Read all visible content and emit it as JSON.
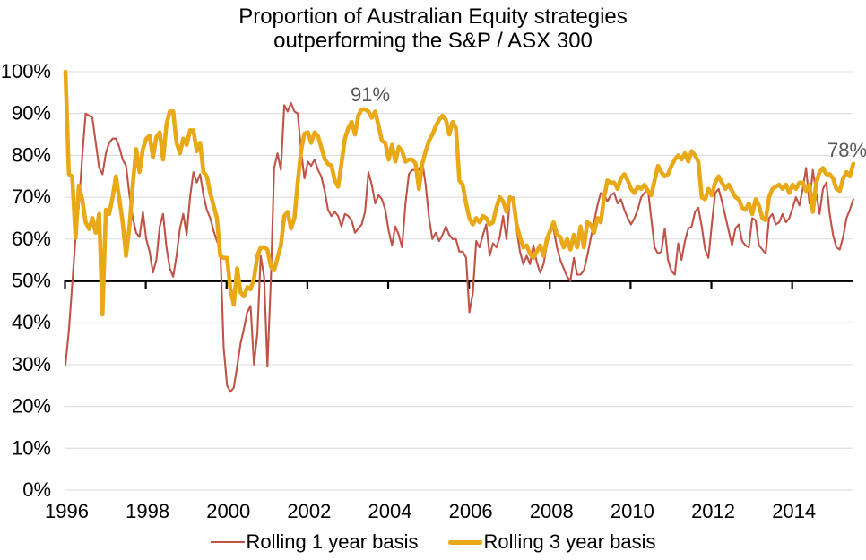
{
  "title": {
    "line1": "Proportion of Australian Equity strategies",
    "line2": "outperforming the S&P / ASX 300"
  },
  "legend": {
    "items": [
      {
        "label": "Rolling 1 year basis",
        "color": "#C05348",
        "thickness": 2.5
      },
      {
        "label": "Rolling 3 year basis",
        "color": "#E9A816",
        "thickness": 5
      }
    ]
  },
  "annotations": [
    {
      "text": "91%",
      "series": "Rolling 3 year basis",
      "month_index": 89,
      "value": 91
    },
    {
      "text": "78%",
      "series": "Rolling 3 year basis",
      "month_index": 234,
      "value": 78
    }
  ],
  "chart_data": {
    "type": "line",
    "title": "Proportion of Australian Equity strategies outperforming the S&P / ASX 300",
    "xlabel": "",
    "ylabel": "",
    "x_start_year": 1996,
    "x_step": "1 month",
    "x_tick_labels": [
      "1996",
      "1998",
      "2000",
      "2002",
      "2004",
      "2006",
      "2008",
      "2010",
      "2012",
      "2014"
    ],
    "x_tick_years": [
      1996,
      1998,
      2000,
      2002,
      2004,
      2006,
      2008,
      2010,
      2012,
      2014
    ],
    "y_tick_labels": [
      "0%",
      "10%",
      "20%",
      "30%",
      "40%",
      "50%",
      "60%",
      "70%",
      "80%",
      "90%",
      "100%"
    ],
    "ylim": [
      0,
      100
    ],
    "x_end_year": 2015.5,
    "grid": "horizontal",
    "axis_cross_value": 50,
    "legend_position": "bottom",
    "gridline_color": "#D9D9D9",
    "axis_line_color": "#000000",
    "annotation_color": "#595959",
    "series": [
      {
        "name": "Rolling 1 year basis",
        "color": "#C05348",
        "stroke_width": 2.1,
        "values": [
          30,
          38,
          49,
          60.5,
          68,
          80,
          90,
          89.5,
          89,
          83,
          77,
          75.5,
          80.5,
          83,
          84,
          84,
          82,
          79,
          77.5,
          70.5,
          65,
          61.5,
          60.5,
          66.5,
          60,
          57,
          52,
          55,
          63,
          66,
          58,
          53,
          51,
          56,
          62.5,
          66,
          61,
          70,
          76,
          73.5,
          75.5,
          70.5,
          67,
          65,
          62,
          59.5,
          58,
          34,
          25,
          23.5,
          24.5,
          29.5,
          35,
          38.5,
          42.5,
          44,
          30,
          37.5,
          56,
          51,
          29.5,
          50,
          77,
          80.5,
          76.5,
          92,
          90.5,
          92.5,
          90.5,
          90,
          81,
          74.5,
          78.5,
          77.5,
          79,
          76.5,
          75,
          71.5,
          67,
          65.5,
          66.5,
          65.5,
          63,
          66,
          65.5,
          64.5,
          61.5,
          62.5,
          63.5,
          66.5,
          76,
          73,
          68.5,
          70.5,
          69.5,
          67,
          62,
          58.5,
          63,
          61,
          58,
          68.5,
          75.5,
          76.5,
          76.5,
          76.5,
          78.5,
          73,
          65,
          60,
          61.5,
          59.5,
          61,
          63,
          61,
          60,
          60,
          57,
          57,
          55.5,
          42.5,
          47,
          59.5,
          58,
          61,
          63.5,
          56,
          59,
          58,
          60.5,
          65.5,
          60,
          69.5,
          70,
          62.5,
          57,
          54,
          56,
          54,
          58.5,
          54.5,
          52,
          54,
          58.5,
          62,
          62.5,
          58,
          55,
          53,
          51,
          50,
          55.5,
          51.5,
          51.5,
          52.5,
          56,
          60,
          64,
          68,
          71,
          70.5,
          69,
          70.5,
          71,
          68.5,
          69.5,
          67,
          65,
          63.5,
          65,
          67,
          70,
          71,
          72,
          65,
          58,
          56.5,
          57,
          62.5,
          55,
          52.3,
          51.5,
          59,
          55,
          59.5,
          62.5,
          63,
          66.5,
          67.5,
          63,
          57.5,
          55.5,
          63.5,
          71,
          72,
          69,
          65.5,
          62,
          58.5,
          62.5,
          63.5,
          59.5,
          58.5,
          58,
          65,
          64.5,
          58.5,
          57.5,
          56.5,
          65,
          66,
          63.5,
          64,
          66,
          64,
          65,
          67.5,
          70,
          68,
          72,
          77,
          68.5,
          76.5,
          71,
          66,
          72,
          73.5,
          66,
          61,
          58,
          57.5,
          60.5,
          65,
          67,
          69.5
        ]
      },
      {
        "name": "Rolling 3 year basis",
        "color": "#E9A816",
        "stroke_width": 4.6,
        "values": [
          100,
          75.5,
          75,
          60.3,
          72.8,
          69.4,
          64,
          62.4,
          65,
          61.5,
          66,
          42,
          67,
          66,
          70,
          75,
          69.5,
          64,
          56,
          63,
          73,
          81.5,
          76,
          81.5,
          84,
          84.7,
          79.5,
          84.4,
          85.5,
          79,
          87.4,
          90.5,
          90.5,
          83,
          80.5,
          84,
          82.5,
          86,
          86,
          81,
          83,
          76,
          75,
          71,
          68,
          65,
          56,
          55.5,
          55.5,
          48,
          44.3,
          53,
          47.3,
          46.3,
          48.5,
          48,
          50.5,
          56,
          58,
          58,
          57.5,
          53.5,
          52.5,
          55.5,
          58.5,
          65.5,
          66.5,
          62.5,
          65,
          73.6,
          81.2,
          85.2,
          85.5,
          83,
          85.5,
          84.6,
          81.9,
          79.1,
          77.9,
          77.6,
          74,
          72.5,
          78,
          84,
          86.5,
          88,
          85,
          89.5,
          91,
          91,
          90.5,
          89,
          90.5,
          87,
          83.5,
          83,
          79,
          82.5,
          78.5,
          82,
          81,
          78.5,
          79,
          79,
          78,
          72,
          78,
          81,
          83.5,
          85,
          87,
          88.5,
          89.5,
          88.5,
          85,
          88,
          86.5,
          74,
          73,
          68.5,
          65,
          63.5,
          65,
          64,
          65.5,
          65,
          63.5,
          64,
          67.5,
          70,
          69,
          66.5,
          70,
          69.5,
          63.5,
          60.5,
          58,
          58.5,
          56.5,
          55.5,
          57,
          58.5,
          56,
          60,
          62,
          64,
          61,
          60.5,
          58,
          60,
          57.5,
          61,
          58,
          63,
          58,
          64,
          63.5,
          61.5,
          65,
          64,
          70,
          74,
          73.5,
          73.5,
          72,
          74.5,
          75.5,
          74,
          72,
          71,
          72.5,
          72,
          73,
          71.5,
          70.5,
          74,
          77.5,
          76,
          75,
          75.5,
          77.5,
          79,
          80,
          79,
          80.5,
          78.5,
          81,
          80,
          78.5,
          70,
          69.5,
          72,
          70.5,
          73.5,
          75,
          73.5,
          72,
          73,
          71.5,
          70,
          69.5,
          67.5,
          67,
          68.5,
          66,
          69.5,
          68,
          65,
          64.5,
          70,
          72,
          72.5,
          73,
          72,
          73,
          71,
          73,
          72,
          73.5,
          73.5,
          71.5,
          73,
          66.5,
          73.5,
          76,
          77,
          75.5,
          75.5,
          74.5,
          72,
          71.5,
          74.5,
          76,
          75,
          78
        ]
      }
    ]
  }
}
